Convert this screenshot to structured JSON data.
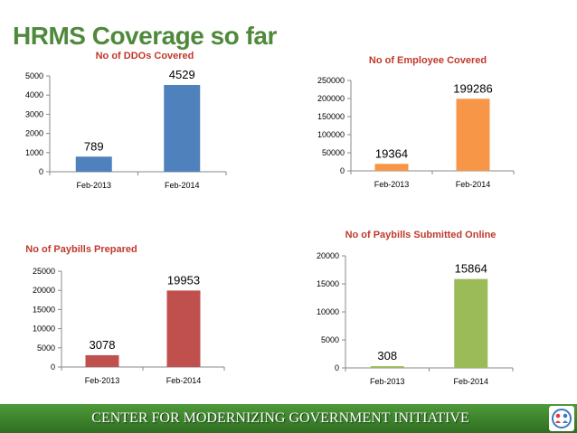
{
  "title": "HRMS Coverage so far",
  "footer": {
    "text": "CENTER FOR MODERNIZING GOVERNMENT INITIATIVE",
    "logo": "cmgi-logo-icon"
  },
  "chart_data": [
    {
      "type": "bar",
      "title": "No of DDOs Covered",
      "categories": [
        "Feb-2013",
        "Feb-2014"
      ],
      "values": [
        789,
        4529
      ],
      "ylim": [
        0,
        5000
      ],
      "yticks": [
        0,
        1000,
        2000,
        3000,
        4000,
        5000
      ],
      "color": "#4f81bd",
      "grid": false,
      "legend": "none"
    },
    {
      "type": "bar",
      "title": "No of Employee Covered",
      "categories": [
        "Feb-2013",
        "Feb-2014"
      ],
      "values": [
        19364,
        199286
      ],
      "ylim": [
        0,
        250000
      ],
      "yticks": [
        0,
        50000,
        100000,
        150000,
        200000,
        250000
      ],
      "color": "#f79646",
      "grid": false,
      "legend": "none"
    },
    {
      "type": "bar",
      "title": "No of Paybills Prepared",
      "categories": [
        "Feb-2013",
        "Feb-2014"
      ],
      "values": [
        3078,
        19953
      ],
      "ylim": [
        0,
        25000
      ],
      "yticks": [
        0,
        5000,
        10000,
        15000,
        20000,
        25000
      ],
      "color": "#c0504d",
      "grid": false,
      "legend": "none"
    },
    {
      "type": "bar",
      "title": "No of Paybills Submitted Online",
      "categories": [
        "Feb-2013",
        "Feb-2014"
      ],
      "values": [
        308,
        15864
      ],
      "ylim": [
        0,
        20000
      ],
      "yticks": [
        0,
        5000,
        10000,
        15000,
        20000
      ],
      "color": "#9bbb59",
      "grid": false,
      "legend": "none"
    }
  ]
}
